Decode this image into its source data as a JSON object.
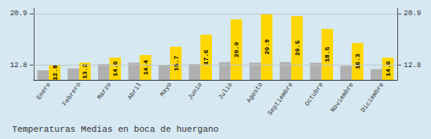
{
  "chart_data": {
    "type": "bar",
    "title": "Temperaturas Medias en boca de huergano",
    "categories": [
      "Enero",
      "Febrero",
      "Marzo",
      "Abril",
      "Mayo",
      "Junio",
      "Julio",
      "Agosto",
      "Septiembre",
      "Octubre",
      "Noviembre",
      "Diciembre"
    ],
    "series": [
      {
        "color": "#B0B0B0",
        "values": [
          12.0,
          12.3,
          13.0,
          13.2,
          12.8,
          13.0,
          13.3,
          13.2,
          13.3,
          13.2,
          12.7,
          12.2
        ]
      },
      {
        "color": "#FFD700",
        "values": [
          12.8,
          13.2,
          14.0,
          14.4,
          15.7,
          17.6,
          20.0,
          20.9,
          20.5,
          18.5,
          16.3,
          14.0
        ],
        "value_labels": [
          "12.8",
          "13.2",
          "14.0",
          "14.4",
          "15.7",
          "17.6",
          "20.0",
          "20.9",
          "20.5",
          "18.5",
          "16.3",
          "14.0"
        ],
        "data_labels": true
      }
    ],
    "ylim": [
      10.5,
      21.8
    ],
    "yticks": [
      12.8,
      20.9
    ],
    "y2lim": [
      10.5,
      21.8
    ],
    "y2ticks": [
      12.8,
      20.9
    ],
    "grid": true
  }
}
